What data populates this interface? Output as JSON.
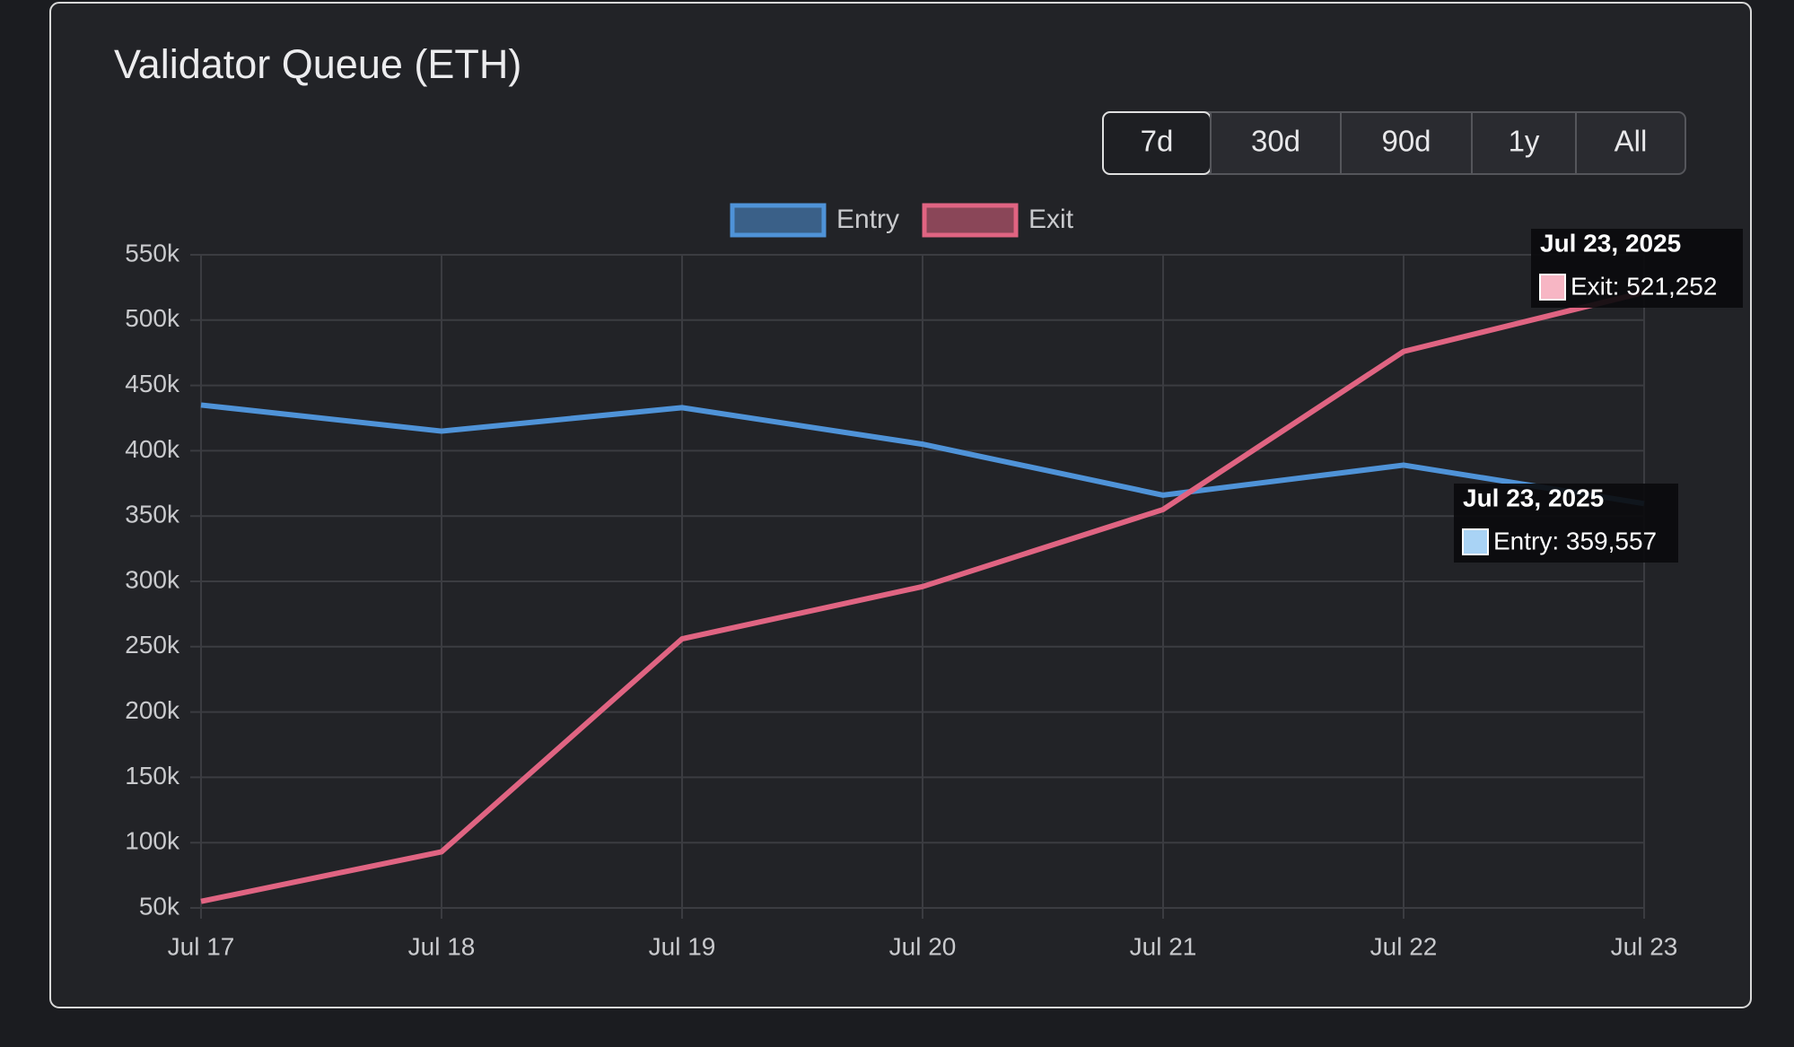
{
  "chart_data": {
    "type": "line",
    "title": "Validator Queue (ETH)",
    "buttons": [
      "7d",
      "30d",
      "90d",
      "1y",
      "All"
    ],
    "active_button": 0,
    "categories": [
      "Jul 17",
      "Jul 18",
      "Jul 19",
      "Jul 20",
      "Jul 21",
      "Jul 22",
      "Jul 23"
    ],
    "series": [
      {
        "name": "Entry",
        "color": "#4f93d8",
        "values": [
          435000,
          415000,
          433000,
          405000,
          366000,
          389000,
          359557
        ]
      },
      {
        "name": "Exit",
        "color": "#e06482",
        "values": [
          55000,
          93000,
          256000,
          296000,
          355000,
          476000,
          521252
        ]
      }
    ],
    "ylim": [
      50000,
      550000
    ],
    "yticks": [
      {
        "value": 50000,
        "label": "50k"
      },
      {
        "value": 100000,
        "label": "100k"
      },
      {
        "value": 150000,
        "label": "150k"
      },
      {
        "value": 200000,
        "label": "200k"
      },
      {
        "value": 250000,
        "label": "250k"
      },
      {
        "value": 300000,
        "label": "300k"
      },
      {
        "value": 350000,
        "label": "350k"
      },
      {
        "value": 400000,
        "label": "400k"
      },
      {
        "value": 450000,
        "label": "450k"
      },
      {
        "value": 500000,
        "label": "500k"
      },
      {
        "value": 550000,
        "label": "550k"
      }
    ],
    "grid": true,
    "legend": "top",
    "tooltips": [
      {
        "series": 1,
        "title": "Jul 23, 2025",
        "label": "Exit: 521,252",
        "swatch": "#f7b6c4"
      },
      {
        "series": 0,
        "title": "Jul 23, 2025",
        "label": "Entry: 359,557",
        "swatch": "#a9d3f5"
      }
    ]
  }
}
